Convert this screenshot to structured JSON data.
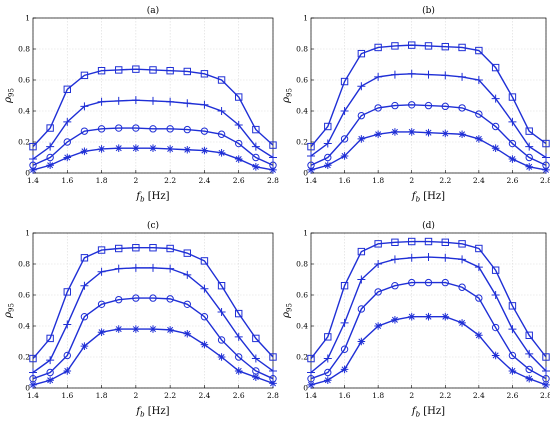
{
  "chart_data": [
    {
      "type": "line",
      "title": "(a)",
      "xlabel_main": "f",
      "xlabel_sub": "b",
      "xlabel_unit": "[Hz]",
      "ylabel_main": "ρ",
      "ylabel_sub": "95",
      "xlim": [
        1.4,
        2.8
      ],
      "ylim": [
        0,
        1
      ],
      "xticks": [
        "1.4",
        "1.6",
        "1.8",
        "2",
        "2.2",
        "2.4",
        "2.6",
        "2.8"
      ],
      "yticks": [
        "0",
        "0.2",
        "0.4",
        "0.6",
        "0.8",
        "1"
      ],
      "grid": true,
      "x": [
        1.4,
        1.5,
        1.6,
        1.7,
        1.8,
        1.9,
        2.0,
        2.1,
        2.2,
        2.3,
        2.4,
        2.5,
        2.6,
        2.7,
        2.8
      ],
      "series": [
        {
          "marker": "square",
          "values": [
            0.17,
            0.29,
            0.54,
            0.63,
            0.66,
            0.665,
            0.67,
            0.665,
            0.66,
            0.655,
            0.64,
            0.6,
            0.49,
            0.28,
            0.18
          ]
        },
        {
          "marker": "plus",
          "values": [
            0.09,
            0.17,
            0.33,
            0.43,
            0.46,
            0.465,
            0.47,
            0.465,
            0.46,
            0.45,
            0.44,
            0.4,
            0.31,
            0.17,
            0.1
          ]
        },
        {
          "marker": "circle",
          "values": [
            0.05,
            0.1,
            0.2,
            0.27,
            0.285,
            0.29,
            0.29,
            0.285,
            0.285,
            0.28,
            0.27,
            0.25,
            0.19,
            0.1,
            0.05
          ]
        },
        {
          "marker": "asterisk",
          "values": [
            0.02,
            0.05,
            0.1,
            0.14,
            0.155,
            0.16,
            0.16,
            0.16,
            0.155,
            0.15,
            0.145,
            0.13,
            0.09,
            0.04,
            0.02
          ]
        }
      ]
    },
    {
      "type": "line",
      "title": "(b)",
      "xlabel_main": "f",
      "xlabel_sub": "b",
      "xlabel_unit": "[Hz]",
      "ylabel_main": "ρ",
      "ylabel_sub": "95",
      "xlim": [
        1.4,
        2.8
      ],
      "ylim": [
        0,
        1
      ],
      "xticks": [
        "1.4",
        "1.6",
        "1.8",
        "2",
        "2.2",
        "2.4",
        "2.6",
        "2.8"
      ],
      "yticks": [
        "0",
        "0.2",
        "0.4",
        "0.6",
        "0.8",
        "1"
      ],
      "grid": true,
      "x": [
        1.4,
        1.5,
        1.6,
        1.7,
        1.8,
        1.9,
        2.0,
        2.1,
        2.2,
        2.3,
        2.4,
        2.5,
        2.6,
        2.7,
        2.8
      ],
      "series": [
        {
          "marker": "square",
          "values": [
            0.17,
            0.3,
            0.59,
            0.77,
            0.81,
            0.82,
            0.825,
            0.82,
            0.815,
            0.81,
            0.79,
            0.68,
            0.49,
            0.27,
            0.19
          ]
        },
        {
          "marker": "plus",
          "values": [
            0.11,
            0.19,
            0.4,
            0.56,
            0.62,
            0.635,
            0.64,
            0.635,
            0.63,
            0.62,
            0.6,
            0.48,
            0.33,
            0.17,
            0.1
          ]
        },
        {
          "marker": "circle",
          "values": [
            0.05,
            0.1,
            0.22,
            0.37,
            0.42,
            0.435,
            0.44,
            0.435,
            0.43,
            0.42,
            0.38,
            0.3,
            0.19,
            0.1,
            0.05
          ]
        },
        {
          "marker": "asterisk",
          "values": [
            0.02,
            0.05,
            0.11,
            0.22,
            0.25,
            0.265,
            0.265,
            0.26,
            0.255,
            0.25,
            0.22,
            0.16,
            0.09,
            0.04,
            0.02
          ]
        }
      ]
    },
    {
      "type": "line",
      "title": "(c)",
      "xlabel_main": "f",
      "xlabel_sub": "b",
      "xlabel_unit": "[Hz]",
      "ylabel_main": "ρ",
      "ylabel_sub": "95",
      "xlim": [
        1.4,
        2.8
      ],
      "ylim": [
        0,
        1
      ],
      "xticks": [
        "1.4",
        "1.6",
        "1.8",
        "2",
        "2.2",
        "2.4",
        "2.6",
        "2.8"
      ],
      "yticks": [
        "0",
        "0.2",
        "0.4",
        "0.6",
        "0.8",
        "1"
      ],
      "grid": true,
      "x": [
        1.4,
        1.5,
        1.6,
        1.7,
        1.8,
        1.9,
        2.0,
        2.1,
        2.2,
        2.3,
        2.4,
        2.5,
        2.6,
        2.7,
        2.8
      ],
      "series": [
        {
          "marker": "square",
          "values": [
            0.19,
            0.32,
            0.62,
            0.84,
            0.89,
            0.9,
            0.905,
            0.905,
            0.9,
            0.87,
            0.82,
            0.66,
            0.48,
            0.32,
            0.2
          ]
        },
        {
          "marker": "plus",
          "values": [
            0.1,
            0.18,
            0.41,
            0.66,
            0.75,
            0.77,
            0.775,
            0.775,
            0.77,
            0.73,
            0.64,
            0.49,
            0.33,
            0.19,
            0.11
          ]
        },
        {
          "marker": "circle",
          "values": [
            0.06,
            0.1,
            0.21,
            0.46,
            0.54,
            0.57,
            0.58,
            0.58,
            0.575,
            0.54,
            0.46,
            0.31,
            0.2,
            0.11,
            0.06
          ]
        },
        {
          "marker": "asterisk",
          "values": [
            0.02,
            0.05,
            0.11,
            0.27,
            0.36,
            0.38,
            0.38,
            0.38,
            0.375,
            0.35,
            0.28,
            0.2,
            0.11,
            0.07,
            0.03
          ]
        }
      ]
    },
    {
      "type": "line",
      "title": "(d)",
      "xlabel_main": "f",
      "xlabel_sub": "b",
      "xlabel_unit": "[Hz]",
      "ylabel_main": "ρ",
      "ylabel_sub": "95",
      "xlim": [
        1.4,
        2.8
      ],
      "ylim": [
        0,
        1
      ],
      "xticks": [
        "1.4",
        "1.6",
        "1.8",
        "2",
        "2.2",
        "2.4",
        "2.6",
        "2.8"
      ],
      "yticks": [
        "0",
        "0.2",
        "0.4",
        "0.6",
        "0.8",
        "1"
      ],
      "grid": true,
      "x": [
        1.4,
        1.5,
        1.6,
        1.7,
        1.8,
        1.9,
        2.0,
        2.1,
        2.2,
        2.3,
        2.4,
        2.5,
        2.6,
        2.7,
        2.8
      ],
      "series": [
        {
          "marker": "square",
          "values": [
            0.19,
            0.33,
            0.66,
            0.88,
            0.93,
            0.94,
            0.945,
            0.945,
            0.94,
            0.93,
            0.9,
            0.76,
            0.53,
            0.34,
            0.2
          ]
        },
        {
          "marker": "plus",
          "values": [
            0.1,
            0.19,
            0.42,
            0.7,
            0.8,
            0.83,
            0.84,
            0.845,
            0.84,
            0.83,
            0.78,
            0.6,
            0.38,
            0.22,
            0.11
          ]
        },
        {
          "marker": "circle",
          "values": [
            0.06,
            0.1,
            0.25,
            0.51,
            0.62,
            0.66,
            0.68,
            0.68,
            0.68,
            0.65,
            0.58,
            0.39,
            0.21,
            0.12,
            0.06
          ]
        },
        {
          "marker": "asterisk",
          "values": [
            0.02,
            0.05,
            0.12,
            0.3,
            0.4,
            0.44,
            0.46,
            0.46,
            0.46,
            0.42,
            0.34,
            0.21,
            0.11,
            0.06,
            0.02
          ]
        }
      ]
    }
  ]
}
